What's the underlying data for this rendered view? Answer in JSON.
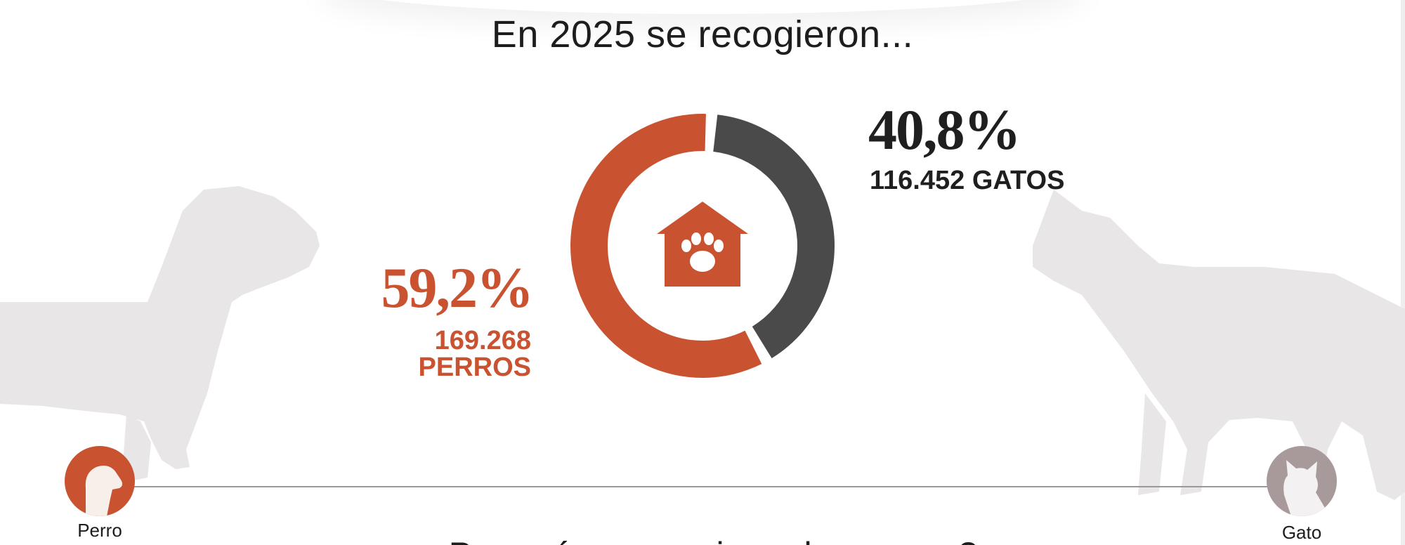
{
  "title": "En 2025 se recogieron...",
  "colors": {
    "dog": "#c95331",
    "cat": "#4a4a4a",
    "silhouette": "#e8e6e7",
    "cat_knob": "#a89a9b"
  },
  "chart_data": {
    "type": "pie",
    "style": "donut",
    "series": [
      {
        "name": "PERROS",
        "percent": 59.2,
        "percent_label": "59,2%",
        "count": 169268,
        "count_label": "169.268",
        "color": "#c95331"
      },
      {
        "name": "GATOS",
        "percent": 40.8,
        "percent_label": "40,8%",
        "count": 116452,
        "count_label": "116.452 GATOS",
        "color": "#4a4a4a"
      }
    ],
    "center_icon": "house-paw-icon"
  },
  "slider": {
    "left_label": "Perro",
    "right_label": "Gato",
    "left_icon": "dog-head-icon",
    "right_icon": "cat-head-icon"
  },
  "bottom_text": "¿Por qué se recogieron los perros?"
}
